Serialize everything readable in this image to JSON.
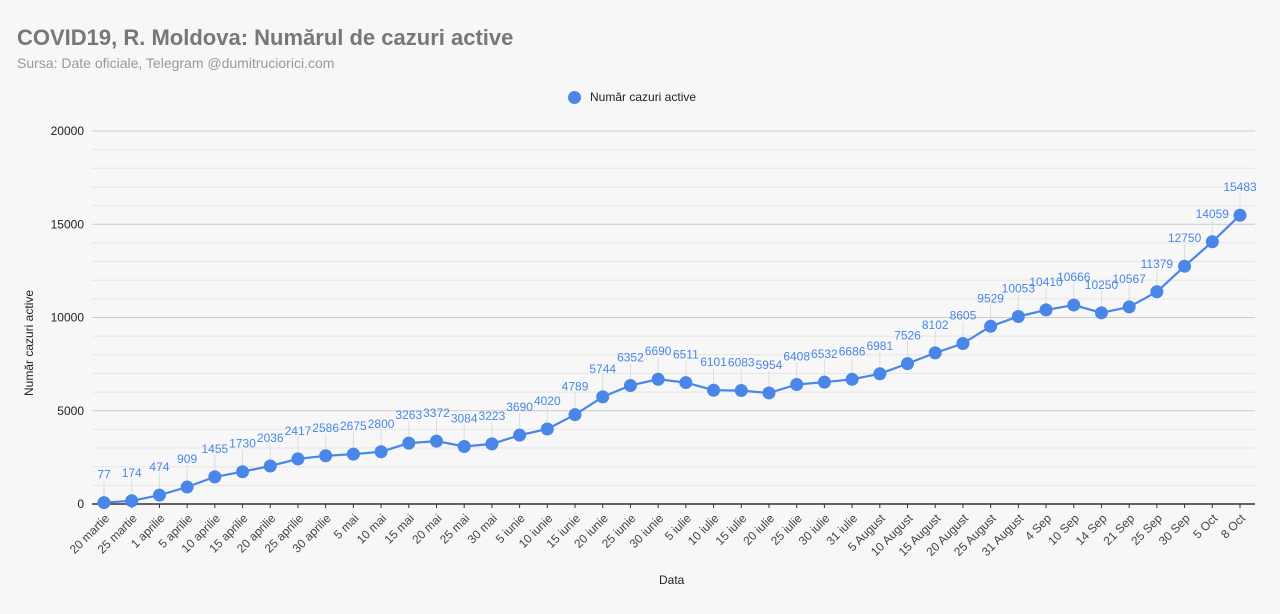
{
  "header": {
    "title": "COVID19, R. Moldova: Numărul de cazuri active",
    "subtitle": "Sursa: Date oficiale, Telegram @dumitruciorici.com"
  },
  "colors": {
    "series": "#4a86e8",
    "label": "#4a86e8",
    "grid_major": "#cccccc",
    "grid_minor": "#e6e6e6",
    "axis": "#333333"
  },
  "chart_data": {
    "type": "line",
    "title": "COVID19, R. Moldova: Numărul de cazuri active",
    "subtitle": "Sursa: Date oficiale, Telegram @dumitruciorici.com",
    "xlabel": "Data",
    "ylabel": "Număr cazuri active",
    "ylim": [
      0,
      20000
    ],
    "yticks": [
      "0",
      "5000",
      "10000",
      "15000",
      "20000"
    ],
    "grid": true,
    "minor_gridlines": true,
    "legend_position": "top",
    "markers": true,
    "data_labels": true,
    "categories": [
      "20 martie",
      "25 martie",
      "1 aprilie",
      "5 aprilie",
      "10 aprilie",
      "15 aprilie",
      "20 aprilie",
      "25 aprilie",
      "30 aprilie",
      "5 mai",
      "10 mai",
      "15 mai",
      "20 mai",
      "25 mai",
      "30 mai",
      "5 iunie",
      "10 iunie",
      "15 iunie",
      "20 iunie",
      "25 iunie",
      "30 iunie",
      "5 iulie",
      "10 iulie",
      "15 iulie",
      "20 iulie",
      "25 iulie",
      "30 iulie",
      "31 iulie",
      "5 August",
      "10 August",
      "15 August",
      "20 August",
      "25 August",
      "31 August",
      "4 Sep",
      "10 Sep",
      "14 Sep",
      "21 Sep",
      "25 Sep",
      "30 Sep",
      "5 Oct",
      "8 Oct"
    ],
    "series": [
      {
        "name": "Număr cazuri active",
        "values": [
          77,
          174,
          474,
          909,
          1455,
          1730,
          2036,
          2417,
          2586,
          2675,
          2800,
          3263,
          3372,
          3084,
          3223,
          3690,
          4020,
          4789,
          5744,
          6352,
          6690,
          6511,
          6101,
          6083,
          5954,
          6408,
          6532,
          6686,
          6981,
          7526,
          8102,
          8605,
          9529,
          10053,
          10410,
          10666,
          10250,
          10567,
          11379,
          12750,
          14059,
          15483
        ],
        "labels": [
          "77",
          "174",
          "474",
          "909",
          "1455",
          "1730",
          "2036",
          "2417",
          "2586",
          "2675",
          "2800",
          "3263",
          "3372",
          "3084",
          "3223",
          "3690",
          "4020",
          "4789",
          "5744",
          "6352",
          "6690",
          "6511",
          "6101",
          "6083",
          "5954",
          "6408",
          "6532",
          "6686",
          "6981",
          "7526",
          "8102",
          "8605",
          "9529",
          "10053",
          "10410",
          "10666",
          "10250",
          "10567",
          "11379",
          "12750",
          "14059",
          "15483"
        ]
      }
    ]
  }
}
